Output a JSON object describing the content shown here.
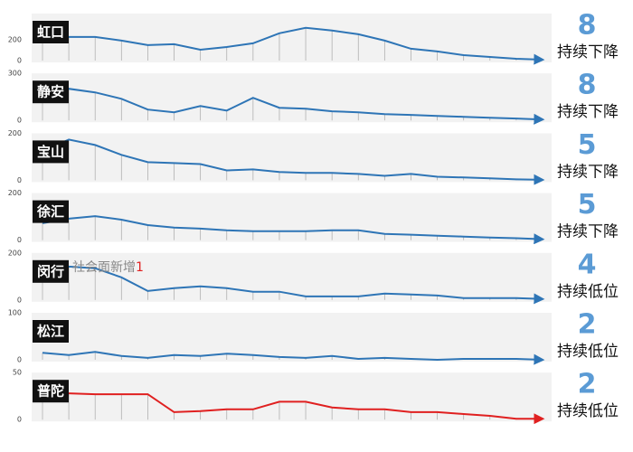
{
  "chart_data": [
    {
      "type": "line",
      "title": "虹口",
      "ylim": [
        0,
        450
      ],
      "yticks": [
        0,
        200
      ],
      "color": "#2e75b6",
      "count": 8,
      "trend": "持续下降",
      "values": [
        226,
        226,
        226,
        191,
        148,
        157,
        104,
        130,
        165,
        261,
        313,
        287,
        252,
        191,
        113,
        87,
        52,
        35,
        17,
        9
      ]
    },
    {
      "type": "line",
      "title": "静安",
      "ylim": [
        0,
        300
      ],
      "yticks": [
        0,
        300
      ],
      "color": "#2e75b6",
      "count": 8,
      "trend": "持续下降",
      "values": [
        167,
        202,
        179,
        138,
        69,
        52,
        92,
        63,
        144,
        81,
        75,
        58,
        52,
        40,
        35,
        29,
        23,
        17,
        12,
        6
      ]
    },
    {
      "type": "line",
      "title": "宝山",
      "ylim": [
        0,
        200
      ],
      "yticks": [
        0,
        200
      ],
      "color": "#2e75b6",
      "count": 5,
      "trend": "持续下降",
      "values": [
        123,
        173,
        150,
        108,
        77,
        73,
        69,
        42,
        46,
        35,
        31,
        31,
        27,
        19,
        27,
        15,
        12,
        8,
        4,
        2
      ]
    },
    {
      "type": "line",
      "title": "徐汇",
      "ylim": [
        0,
        200
      ],
      "yticks": [
        0,
        200
      ],
      "color": "#2e75b6",
      "count": 5,
      "trend": "持续下降",
      "values": [
        72,
        91,
        102,
        87,
        64,
        53,
        49,
        42,
        38,
        38,
        38,
        42,
        42,
        26,
        23,
        19,
        15,
        11,
        8,
        4
      ]
    },
    {
      "type": "line",
      "title": "闵行",
      "ylim": [
        0,
        200
      ],
      "yticks": [
        0,
        200
      ],
      "color": "#2e75b6",
      "count": 4,
      "trend": "持续低位",
      "annotation": [
        "社会面新增",
        "1"
      ],
      "values": [
        81,
        142,
        135,
        96,
        38,
        50,
        58,
        50,
        35,
        35,
        15,
        15,
        15,
        27,
        23,
        19,
        8,
        8,
        8,
        4
      ]
    },
    {
      "type": "line",
      "title": "松江",
      "ylim": [
        0,
        100
      ],
      "yticks": [
        0,
        100
      ],
      "color": "#2e75b6",
      "count": 2,
      "trend": "持续低位",
      "values": [
        15,
        10,
        17,
        8,
        4,
        10,
        8,
        13,
        10,
        6,
        4,
        8,
        2,
        4,
        2,
        0,
        2,
        2,
        2,
        0
      ]
    },
    {
      "type": "line",
      "title": "普陀",
      "ylim": [
        0,
        50
      ],
      "yticks": [
        0,
        50
      ],
      "color": "#e02020",
      "count": 2,
      "trend": "持续低位",
      "values": [
        28,
        28,
        27,
        27,
        27,
        8,
        9,
        11,
        11,
        19,
        19,
        13,
        11,
        11,
        8,
        8,
        6,
        4,
        1,
        1
      ]
    }
  ]
}
